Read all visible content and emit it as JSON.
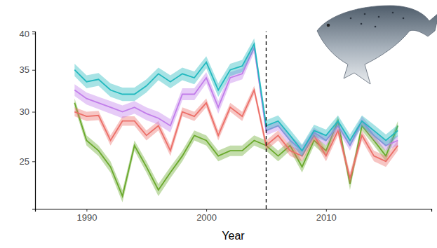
{
  "chart_data": {
    "type": "line",
    "x_label": "Year",
    "x": [
      1989,
      1990,
      1991,
      1992,
      1993,
      1994,
      1995,
      1996,
      1997,
      1998,
      1999,
      2000,
      2001,
      2002,
      2003,
      2004,
      2005,
      2006,
      2007,
      2008,
      2009,
      2010,
      2011,
      2012,
      2013,
      2014,
      2015,
      2016
    ],
    "xlim": [
      1985.7,
      2018.8
    ],
    "xticks": [
      1990,
      2000,
      2010
    ],
    "ylim": [
      21,
      40.3
    ],
    "yticks": [
      25,
      30,
      35,
      40
    ],
    "log": "y",
    "vline": 2005,
    "series": [
      {
        "color": "#22B9BF",
        "values": [
          35,
          33.5,
          33.8,
          32.5,
          32,
          32,
          33,
          34.5,
          33.5,
          34.5,
          34,
          36,
          32.5,
          35,
          35.5,
          38.5,
          28.5,
          29,
          27.5,
          26,
          28,
          27.5,
          29,
          27,
          29,
          28,
          27,
          28
        ],
        "errors": [
          0.8,
          0.8,
          0.8,
          0.8,
          0.8,
          0.8,
          0.8,
          0.8,
          0.8,
          0.8,
          0.8,
          0.8,
          0.8,
          0.8,
          0.8,
          0.8,
          0.6,
          0.6,
          0.6,
          0.6,
          0.6,
          0.6,
          0.6,
          0.6,
          0.6,
          0.6,
          0.6,
          0.6
        ]
      },
      {
        "color": "#C17DEA",
        "values": [
          32.5,
          31.5,
          31,
          30.5,
          30,
          30.5,
          29.8,
          29.3,
          28.5,
          32,
          32,
          34,
          30.5,
          34,
          34.5,
          38,
          28,
          28.5,
          27,
          26,
          27.8,
          27,
          28.5,
          26.5,
          29,
          27.5,
          26.5,
          27
        ],
        "errors": [
          0.7,
          0.7,
          0.7,
          0.7,
          0.7,
          0.7,
          0.7,
          0.7,
          0.7,
          0.7,
          0.7,
          0.7,
          0.7,
          0.7,
          0.7,
          0.7,
          0.5,
          0.5,
          0.5,
          0.5,
          0.5,
          0.5,
          0.5,
          0.5,
          0.5,
          0.5,
          0.5,
          0.5
        ]
      },
      {
        "color": "#EC6F68",
        "values": [
          30,
          29.5,
          29.6,
          27,
          29,
          29,
          27.5,
          28.5,
          26,
          30,
          29.5,
          31,
          27.5,
          30.5,
          29.5,
          32.5,
          26.5,
          27.5,
          26,
          25.5,
          27.5,
          25.5,
          28,
          23.5,
          27.5,
          25.5,
          25,
          26.5
        ],
        "errors": [
          0.5,
          0.5,
          0.5,
          0.5,
          0.5,
          0.5,
          0.5,
          0.5,
          0.5,
          0.5,
          0.5,
          0.5,
          0.5,
          0.5,
          0.5,
          0.5,
          0.5,
          0.5,
          0.5,
          0.5,
          0.5,
          0.5,
          0.5,
          0.5,
          0.5,
          0.5,
          0.5,
          0.5
        ]
      },
      {
        "color": "#6AA92C",
        "values": [
          31,
          27,
          26,
          24.5,
          22,
          26.5,
          24.5,
          22.5,
          24,
          25.5,
          27.5,
          27,
          25.5,
          26,
          26,
          27,
          26.5,
          25.5,
          26.5,
          24.5,
          27,
          26,
          29,
          23,
          28.5,
          27,
          25.5,
          28.5
        ],
        "errors": [
          0.5,
          0.5,
          0.5,
          0.5,
          0.5,
          0.5,
          0.5,
          0.5,
          0.5,
          0.5,
          0.5,
          0.5,
          0.5,
          0.5,
          0.5,
          0.5,
          0.5,
          0.5,
          0.5,
          0.5,
          0.5,
          0.5,
          0.5,
          0.5,
          0.5,
          0.5,
          0.5,
          0.5
        ]
      }
    ]
  }
}
